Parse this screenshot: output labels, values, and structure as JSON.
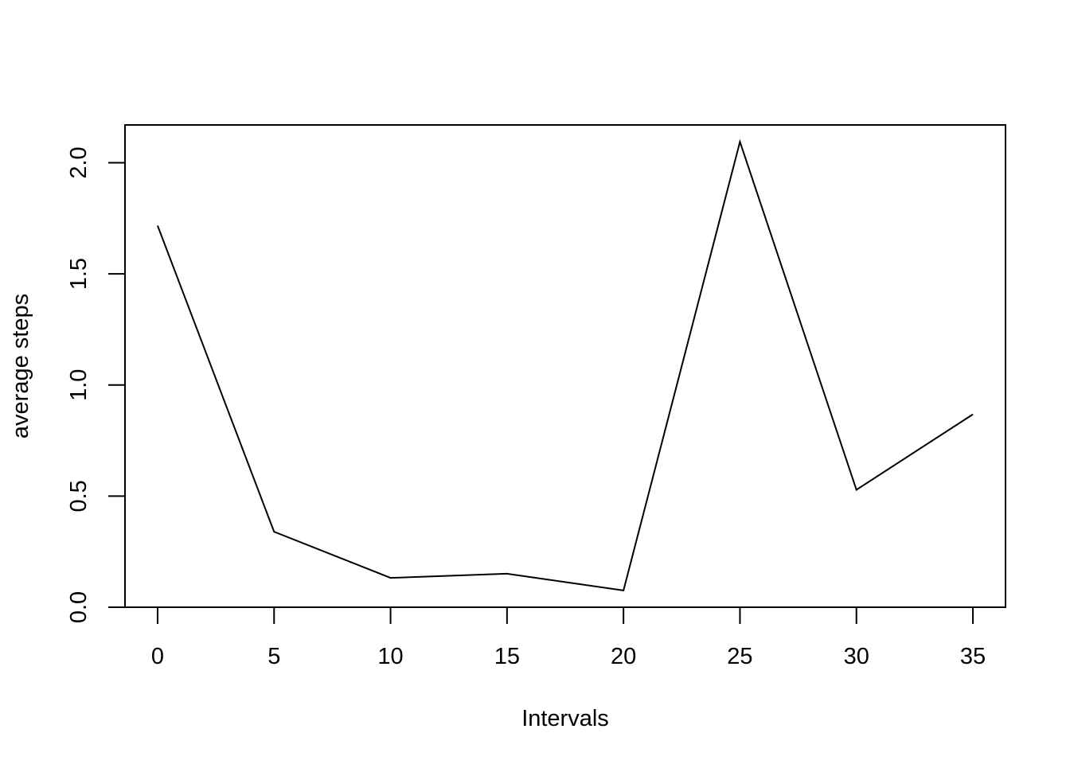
{
  "chart_data": {
    "type": "line",
    "title": "",
    "xlabel": "Intervals",
    "ylabel": "average steps",
    "x": [
      0,
      5,
      10,
      15,
      20,
      25,
      30,
      35
    ],
    "series": [
      {
        "values": [
          1.717,
          0.3396,
          0.1321,
          0.1509,
          0.0755,
          2.0943,
          0.5283,
          0.8679
        ]
      }
    ],
    "xlim": [
      -1.4,
      36.4
    ],
    "ylim": [
      0,
      2.17
    ],
    "xticks": [
      0,
      5,
      10,
      15,
      20,
      25,
      30,
      35
    ],
    "xtick_labels": [
      "0",
      "5",
      "10",
      "15",
      "20",
      "25",
      "30",
      "35"
    ],
    "yticks": [
      0,
      0.5,
      1,
      1.5,
      2
    ],
    "ytick_labels": [
      "0.0",
      "0.5",
      "1.0",
      "1.5",
      "2.0"
    ],
    "grid": false,
    "legend": "none",
    "line_color": "#000000"
  }
}
